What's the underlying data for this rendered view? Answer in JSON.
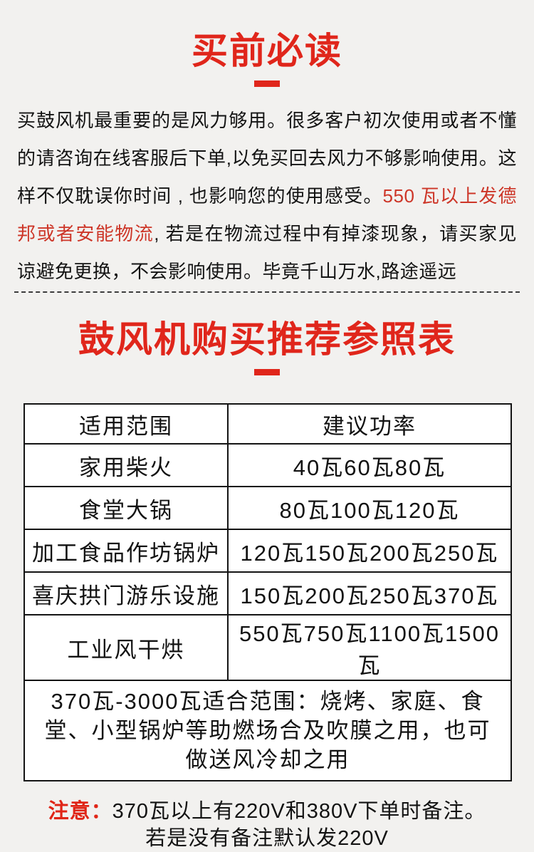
{
  "colors": {
    "page_background": "#f2f1ef",
    "title_red": "#e0261b",
    "inline_red": "#cd3628",
    "notice_red": "#e02517",
    "table_background": "#ffffff",
    "text": "#141414"
  },
  "sec1": {
    "title": "买前必读",
    "para": {
      "before_red": "买鼓风机最重要的是风力够用。很多客户初次使用或者不懂的请咨询在线客服后下单,以免买回去风力不够影响使用。这样不仅耽误你时间 , 也影响您的使用感受。",
      "red": "550 瓦以上发德邦或者安能物流",
      "after_red": ", 若是在物流过程中有掉漆现象，请买家见谅避免更换，不会影响使用。毕竟千山万水,路途遥远"
    }
  },
  "sec2": {
    "title": "鼓风机购买推荐参照表",
    "table": {
      "headers": [
        "适用范围",
        "建议功率"
      ],
      "rows": [
        [
          "家用柴火",
          "40瓦60瓦80瓦"
        ],
        [
          "食堂大锅",
          "80瓦100瓦120瓦"
        ],
        [
          "加工食品作坊锅炉",
          "120瓦150瓦200瓦250瓦"
        ],
        [
          "喜庆拱门游乐设施",
          "150瓦200瓦250瓦370瓦"
        ],
        [
          "工业风干烘",
          "550瓦750瓦1100瓦1500瓦"
        ]
      ],
      "merged_note": "370瓦-3000瓦适合范围：烧烤、家庭、食堂、小型锅炉等助燃场合及吹膜之用，也可做送风冷却之用"
    }
  },
  "footer": {
    "notice_label": "注意：",
    "line1": "370瓦以上有220V和380V下单时备注。",
    "line2": "若是没有备注默认发220V"
  }
}
